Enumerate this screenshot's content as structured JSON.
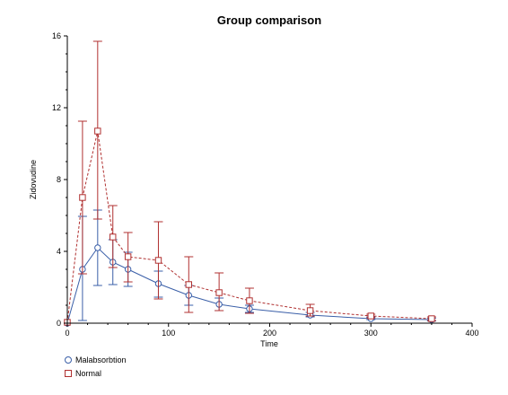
{
  "chart_data": {
    "type": "line",
    "title": "Group comparison",
    "xlabel": "Time",
    "ylabel": "Zidovudine",
    "xlim": [
      0,
      400
    ],
    "ylim": [
      0,
      16
    ],
    "xticks": [
      0,
      100,
      200,
      300,
      400
    ],
    "yticks": [
      0,
      4,
      8,
      12,
      16
    ],
    "grid": false,
    "legend_position": "bottom-left",
    "series": [
      {
        "name": "Malabsorbtion",
        "color": "#3a5fa8",
        "marker": "circle",
        "line_style": "solid",
        "x": [
          0,
          15,
          30,
          45,
          60,
          90,
          120,
          150,
          180,
          240,
          300,
          360
        ],
        "y": [
          0,
          3.0,
          4.2,
          3.4,
          3.0,
          2.2,
          1.55,
          1.05,
          0.8,
          0.45,
          0.25,
          0.2
        ],
        "lower": [
          0,
          0.15,
          2.1,
          2.15,
          2.05,
          1.45,
          1.0,
          0.7,
          0.6,
          0.35,
          0.2,
          0.12
        ],
        "upper": [
          0,
          5.95,
          6.3,
          4.65,
          3.95,
          2.9,
          2.1,
          1.4,
          1.0,
          0.6,
          0.35,
          0.28
        ]
      },
      {
        "name": "Normal",
        "color": "#b03030",
        "marker": "square",
        "line_style": "dashed",
        "x": [
          0,
          15,
          30,
          45,
          60,
          90,
          120,
          150,
          180,
          240,
          300,
          360
        ],
        "y": [
          0.05,
          7.0,
          10.7,
          4.8,
          3.7,
          3.5,
          2.15,
          1.7,
          1.25,
          0.7,
          0.4,
          0.25
        ],
        "lower": [
          0.05,
          2.75,
          5.8,
          3.1,
          2.3,
          1.35,
          0.6,
          0.7,
          0.55,
          0.4,
          0.3,
          0.15
        ],
        "upper": [
          0.05,
          11.25,
          15.7,
          6.55,
          5.05,
          5.65,
          3.7,
          2.8,
          1.95,
          1.05,
          0.5,
          0.35
        ]
      }
    ]
  }
}
